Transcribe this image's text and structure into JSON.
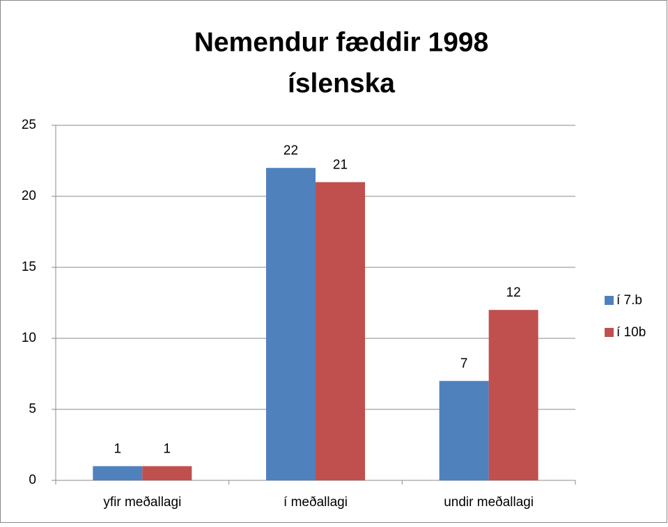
{
  "chart_data": {
    "type": "bar",
    "title": "Nemendur fæddir 1998",
    "subtitle": "íslenska",
    "categories": [
      "yfir meðallagi",
      "í meðallagi",
      "undir meðallagi"
    ],
    "series": [
      {
        "name": "í 7.b",
        "color": "#4f81bd",
        "values": [
          1,
          22,
          7
        ]
      },
      {
        "name": "í 10b",
        "color": "#c0504d",
        "values": [
          1,
          21,
          12
        ]
      }
    ],
    "ylim": [
      0,
      25
    ],
    "yticks": [
      0,
      5,
      10,
      15,
      20,
      25
    ],
    "grid": true,
    "legend": "right"
  }
}
